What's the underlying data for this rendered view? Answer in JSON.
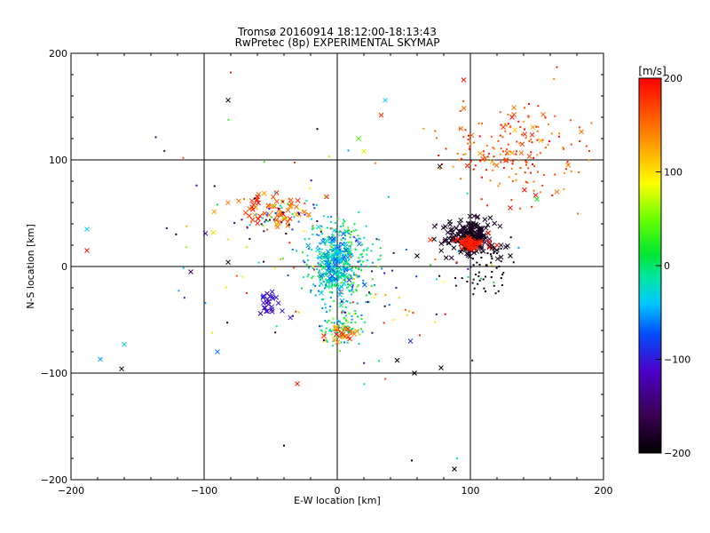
{
  "chart_data": {
    "type": "scatter",
    "title": "Tromsø 20160914  18:12:00-18:13:43",
    "subtitle": "RwPretec (8p) EXPERIMENTAL SKYMAP",
    "xlabel": "E-W location [km]",
    "ylabel": "N-S location [km]",
    "xlim": [
      -200,
      200
    ],
    "ylim": [
      -200,
      200
    ],
    "xticks": [
      -200,
      -100,
      0,
      100,
      200
    ],
    "yticks": [
      -200,
      -100,
      0,
      100,
      200
    ],
    "grid": true,
    "colorbar": {
      "label": "[m/s]",
      "range": [
        -200,
        200
      ],
      "ticks": [
        200,
        100,
        0,
        -100,
        -200
      ],
      "colormap": "black-purple-blue-cyan-green-yellow-orange-red"
    },
    "clusters": [
      {
        "x": 0,
        "y": 5,
        "sx": 12,
        "sy": 22,
        "n": 360,
        "vmin": -70,
        "vmax": 40,
        "marker": "dot"
      },
      {
        "x": 0,
        "y": 0,
        "sx": 7,
        "sy": 14,
        "n": 110,
        "vmin": -80,
        "vmax": 10,
        "marker": "cross"
      },
      {
        "x": 5,
        "y": -58,
        "sx": 8,
        "sy": 7,
        "n": 90,
        "vmin": -60,
        "vmax": 60,
        "marker": "dot"
      },
      {
        "x": 5,
        "y": -62,
        "sx": 6,
        "sy": 5,
        "n": 25,
        "vmin": 110,
        "vmax": 190,
        "marker": "cross"
      },
      {
        "x": -45,
        "y": 53,
        "sx": 15,
        "sy": 8,
        "n": 60,
        "vmin": 120,
        "vmax": 200,
        "marker": "cross"
      },
      {
        "x": -40,
        "y": 45,
        "sx": 18,
        "sy": 10,
        "n": 60,
        "vmin": -200,
        "vmax": 200,
        "marker": "dot"
      },
      {
        "x": 100,
        "y": 28,
        "sx": 9,
        "sy": 8,
        "n": 220,
        "vmin": -200,
        "vmax": -170,
        "marker": "cross"
      },
      {
        "x": 100,
        "y": 22,
        "sx": 5,
        "sy": 4,
        "n": 50,
        "vmin": 170,
        "vmax": 200,
        "marker": "cross"
      },
      {
        "x": 110,
        "y": -5,
        "sx": 10,
        "sy": 12,
        "n": 50,
        "vmin": -200,
        "vmax": -180,
        "marker": "dot"
      },
      {
        "x": 135,
        "y": 110,
        "sx": 30,
        "sy": 22,
        "n": 170,
        "vmin": 130,
        "vmax": 200,
        "marker": "dot"
      },
      {
        "x": 140,
        "y": 115,
        "sx": 25,
        "sy": 18,
        "n": 30,
        "vmin": 110,
        "vmax": 200,
        "marker": "cross"
      },
      {
        "x": -50,
        "y": -35,
        "sx": 5,
        "sy": 6,
        "n": 25,
        "vmin": -130,
        "vmax": -90,
        "marker": "cross"
      },
      {
        "x": 40,
        "y": -20,
        "sx": 45,
        "sy": 35,
        "n": 80,
        "vmin": -200,
        "vmax": 200,
        "marker": "dot"
      },
      {
        "x": -60,
        "y": 20,
        "sx": 55,
        "sy": 55,
        "n": 50,
        "vmin": -200,
        "vmax": 200,
        "marker": "dot"
      }
    ],
    "points": [
      {
        "x": -188,
        "y": 35,
        "v": -40,
        "m": "x"
      },
      {
        "x": -188,
        "y": 15,
        "v": 190,
        "m": "x"
      },
      {
        "x": -178,
        "y": -87,
        "v": -50,
        "m": "x"
      },
      {
        "x": -160,
        "y": -73,
        "v": -30,
        "m": "x"
      },
      {
        "x": -162,
        "y": -96,
        "v": -200,
        "m": "x"
      },
      {
        "x": -110,
        "y": -5,
        "v": -150,
        "m": "x"
      },
      {
        "x": -99,
        "y": 31,
        "v": -130,
        "m": "x"
      },
      {
        "x": -93,
        "y": 32,
        "v": 100,
        "m": "x"
      },
      {
        "x": -90,
        "y": -80,
        "v": -60,
        "m": "x"
      },
      {
        "x": -82,
        "y": 156,
        "v": -200,
        "m": "x"
      },
      {
        "x": -80,
        "y": 182,
        "v": 190,
        "m": "."
      },
      {
        "x": -82,
        "y": 4,
        "v": -200,
        "m": "x"
      },
      {
        "x": -30,
        "y": -110,
        "v": 190,
        "m": "x"
      },
      {
        "x": -40,
        "y": -168,
        "v": -200,
        "m": "."
      },
      {
        "x": -15,
        "y": 129,
        "v": -200,
        "m": "."
      },
      {
        "x": 16,
        "y": 120,
        "v": 40,
        "m": "x"
      },
      {
        "x": 20,
        "y": 108,
        "v": 80,
        "m": "x"
      },
      {
        "x": 33,
        "y": 142,
        "v": 180,
        "m": "x"
      },
      {
        "x": 36,
        "y": 156,
        "v": -40,
        "m": "x"
      },
      {
        "x": 45,
        "y": -88,
        "v": -200,
        "m": "x"
      },
      {
        "x": 55,
        "y": -70,
        "v": -90,
        "m": "x"
      },
      {
        "x": 58,
        "y": -100,
        "v": -200,
        "m": "x"
      },
      {
        "x": 78,
        "y": -95,
        "v": -200,
        "m": "x"
      },
      {
        "x": 77,
        "y": 94,
        "v": -200,
        "m": "x"
      },
      {
        "x": 95,
        "y": 175,
        "v": 190,
        "m": "x"
      },
      {
        "x": 88,
        "y": -190,
        "v": -200,
        "m": "x"
      },
      {
        "x": 90,
        "y": -180,
        "v": -20,
        "m": "."
      },
      {
        "x": 56,
        "y": -182,
        "v": -200,
        "m": "."
      },
      {
        "x": 150,
        "y": 63,
        "v": 20,
        "m": "x"
      },
      {
        "x": 165,
        "y": 70,
        "v": 150,
        "m": "x"
      },
      {
        "x": 130,
        "y": 55,
        "v": 190,
        "m": "x"
      },
      {
        "x": 165,
        "y": 187,
        "v": 190,
        "m": "."
      },
      {
        "x": 120,
        "y": 20,
        "v": 190,
        "m": "x"
      },
      {
        "x": 130,
        "y": 10,
        "v": -200,
        "m": "x"
      },
      {
        "x": 60,
        "y": 10,
        "v": -200,
        "m": "x"
      },
      {
        "x": 70,
        "y": 25,
        "v": 180,
        "m": "x"
      }
    ]
  }
}
